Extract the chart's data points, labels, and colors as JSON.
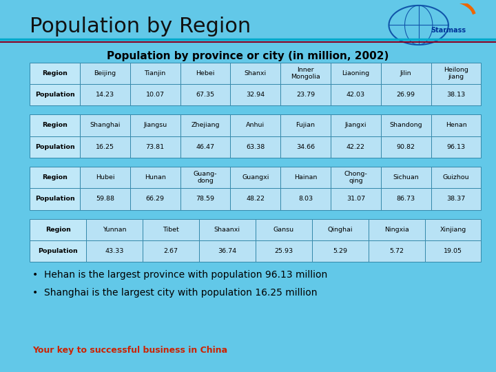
{
  "title": "Population by Region",
  "subtitle": "Population by province or city (in million, 2002)",
  "bg_color": "#62c8e8",
  "border_color": "#3388aa",
  "tables": [
    {
      "regions": [
        "Region",
        "Beijing",
        "Tianjin",
        "Hebei",
        "Shanxi",
        "Inner\nMongolia",
        "Liaoning",
        "Jilin",
        "Heilong\njiang"
      ],
      "populations": [
        "Population",
        "14.23",
        "10.07",
        "67.35",
        "32.94",
        "23.79",
        "42.03",
        "26.99",
        "38.13"
      ]
    },
    {
      "regions": [
        "Region",
        "Shanghai",
        "Jiangsu",
        "Zhejiang",
        "Anhui",
        "Fujian",
        "Jiangxi",
        "Shandong",
        "Henan"
      ],
      "populations": [
        "Population",
        "16.25",
        "73.81",
        "46.47",
        "63.38",
        "34.66",
        "42.22",
        "90.82",
        "96.13"
      ]
    },
    {
      "regions": [
        "Region",
        "Hubei",
        "Hunan",
        "Guang-\ndong",
        "Guangxi",
        "Hainan",
        "Chong-\nqing",
        "Sichuan",
        "Guizhou"
      ],
      "populations": [
        "Population",
        "59.88",
        "66.29",
        "78.59",
        "48.22",
        "8.03",
        "31.07",
        "86.73",
        "38.37"
      ]
    },
    {
      "regions": [
        "Region",
        "Yunnan",
        "Tibet",
        "Shaanxi",
        "Gansu",
        "Qinghai",
        "Ningxia",
        "Xinjiang"
      ],
      "populations": [
        "Population",
        "43.33",
        "2.67",
        "36.74",
        "25.93",
        "5.29",
        "5.72",
        "19.05"
      ]
    }
  ],
  "bullet1": "Hehan is the largest province with population 96.13 million",
  "bullet2": "Shanghai is the largest city with population 16.25 million",
  "footer": "Your key to successful business in China",
  "footer_color": "#cc2200",
  "title_color": "#111111",
  "header_line1_color": "#00aacc",
  "header_line2_color": "#880022"
}
